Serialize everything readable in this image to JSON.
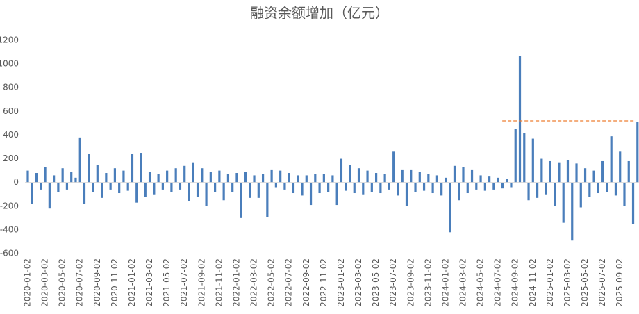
{
  "chart_data": {
    "type": "bar",
    "title": "融资余额增加（亿元）",
    "categories": [
      "2020-01-02",
      null,
      null,
      null,
      "2020-03-02",
      null,
      null,
      null,
      "2020-05-02",
      null,
      null,
      null,
      "2020-07-02",
      null,
      null,
      null,
      "2020-09-02",
      null,
      null,
      null,
      "2020-11-02",
      null,
      null,
      null,
      "2021-01-02",
      null,
      null,
      null,
      "2021-03-02",
      null,
      null,
      null,
      "2021-05-02",
      null,
      null,
      null,
      "2021-07-02",
      null,
      null,
      null,
      "2021-09-02",
      null,
      null,
      null,
      "2021-11-02",
      null,
      null,
      null,
      "2022-01-02",
      null,
      null,
      null,
      "2022-03-02",
      null,
      null,
      null,
      "2022-05-02",
      null,
      null,
      null,
      "2022-07-02",
      null,
      null,
      null,
      "2022-09-02",
      null,
      null,
      null,
      "2022-11-02",
      null,
      null,
      null,
      "2023-01-02",
      null,
      null,
      null,
      "2023-03-02",
      null,
      null,
      null,
      "2023-05-02",
      null,
      null,
      null,
      "2023-07-02",
      null,
      null,
      null,
      "2023-09-02",
      null,
      null,
      null,
      "2023-11-02",
      null,
      null,
      null,
      "2024-01-02",
      null,
      null,
      null,
      "2024-03-02",
      null,
      null,
      null,
      "2024-05-02",
      null,
      null,
      null,
      "2024-07-02",
      null,
      null,
      null,
      "2024-09-02",
      null,
      null,
      null,
      "2024-11-02",
      null,
      null,
      null,
      "2025-01-02",
      null,
      null,
      null,
      "2025-03-02",
      null,
      null,
      null,
      "2025-05-02",
      null,
      null,
      null,
      "2025-07-02",
      null,
      null,
      null,
      "2025-09-02",
      null,
      null,
      null,
      null
    ],
    "values": [
      100,
      -180,
      80,
      -60,
      130,
      -220,
      60,
      -80,
      120,
      -60,
      90,
      40,
      380,
      -180,
      240,
      -80,
      150,
      -130,
      80,
      -60,
      120,
      -90,
      100,
      -70,
      240,
      -170,
      250,
      -120,
      90,
      -100,
      70,
      -60,
      100,
      -80,
      120,
      -60,
      140,
      -160,
      170,
      -120,
      120,
      -200,
      90,
      -80,
      100,
      -150,
      70,
      -80,
      80,
      -300,
      90,
      -130,
      60,
      -130,
      70,
      -290,
      110,
      -40,
      100,
      -60,
      80,
      -90,
      60,
      -110,
      60,
      -190,
      70,
      -90,
      70,
      -80,
      60,
      -190,
      200,
      -70,
      150,
      -90,
      120,
      -100,
      100,
      -80,
      80,
      -90,
      70,
      -60,
      260,
      -110,
      110,
      -200,
      110,
      -80,
      90,
      -70,
      70,
      -90,
      60,
      -110,
      40,
      -420,
      140,
      -150,
      130,
      -90,
      110,
      -60,
      60,
      -70,
      50,
      -60,
      40,
      -50,
      30,
      -40,
      450,
      1070,
      420,
      -150,
      370,
      -130,
      200,
      -100,
      180,
      -200,
      170,
      -340,
      190,
      -490,
      160,
      -210,
      120,
      -120,
      100,
      -90,
      180,
      -80,
      390,
      -110,
      260,
      -200,
      180,
      -350,
      510
    ],
    "color": "#4a7ebb",
    "ylim": [
      -600,
      1200
    ],
    "yticks": [
      -600,
      -400,
      -200,
      0,
      200,
      400,
      600,
      800,
      1000,
      1200
    ],
    "reference_line": {
      "value": 520,
      "start": "2024-07-02",
      "color": "#ed7d31"
    }
  }
}
